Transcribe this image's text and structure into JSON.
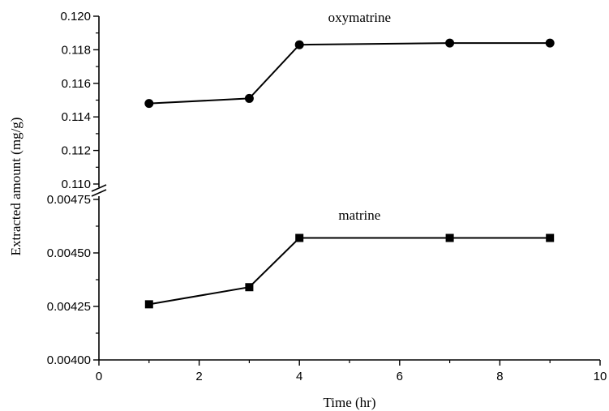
{
  "chart_data": {
    "type": "line",
    "xlabel": "Time (hr)",
    "ylabel": "Extracted amount (mg/g)",
    "xlim": [
      0,
      10
    ],
    "x_ticks": [
      "0",
      "2",
      "4",
      "6",
      "8",
      "10"
    ],
    "y_axis_break": true,
    "upper_panel": {
      "ylim": [
        0.11,
        0.12
      ],
      "y_ticks": [
        "0.110",
        "0.112",
        "0.114",
        "0.116",
        "0.118",
        "0.120"
      ]
    },
    "lower_panel": {
      "ylim": [
        0.004,
        0.00475
      ],
      "y_ticks": [
        "0.00400",
        "0.00425",
        "0.00450",
        "0.00475"
      ]
    },
    "series": [
      {
        "name": "oxymatrine",
        "panel": "upper",
        "marker": "circle",
        "x": [
          1,
          3,
          4,
          7,
          9
        ],
        "y": [
          0.1148,
          0.1151,
          0.1183,
          0.1184,
          0.1184
        ]
      },
      {
        "name": "matrine",
        "panel": "lower",
        "marker": "square",
        "x": [
          1,
          3,
          4,
          7,
          9
        ],
        "y": [
          0.00426,
          0.00434,
          0.00457,
          0.00457,
          0.00457
        ]
      }
    ],
    "grid": false,
    "legend": "none",
    "color": "#000000"
  }
}
